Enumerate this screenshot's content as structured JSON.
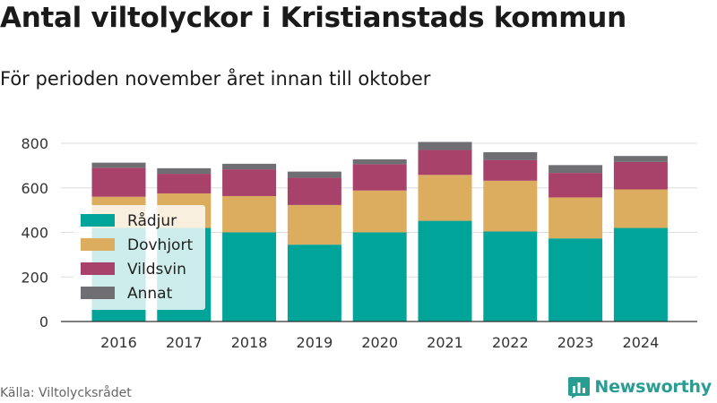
{
  "header": {
    "title": "Antal viltolyckor i Kristianstads kommun",
    "subtitle": "För perioden november året innan till oktober"
  },
  "footer": {
    "source": "Källa: Viltolycksrådet",
    "brand": "Newsworthy",
    "brand_icon": "bar-chart-logo-icon"
  },
  "chart_data": {
    "type": "bar",
    "stacked": true,
    "categories": [
      "2016",
      "2017",
      "2018",
      "2019",
      "2020",
      "2021",
      "2022",
      "2023",
      "2024"
    ],
    "series": [
      {
        "name": "Rådjur",
        "color": "#00a499",
        "values": [
          420,
          420,
          400,
          345,
          400,
          452,
          404,
          373,
          420
        ]
      },
      {
        "name": "Dovhjort",
        "color": "#dcad5e",
        "values": [
          140,
          155,
          163,
          178,
          188,
          206,
          228,
          184,
          173
        ]
      },
      {
        "name": "Vildsvin",
        "color": "#a8426a",
        "values": [
          130,
          88,
          120,
          122,
          118,
          112,
          93,
          110,
          123
        ]
      },
      {
        "name": "Annat",
        "color": "#6e6e73",
        "values": [
          23,
          25,
          25,
          28,
          22,
          36,
          35,
          35,
          27
        ]
      }
    ],
    "y_ticks": [
      0,
      200,
      400,
      600,
      800
    ],
    "ylim": [
      0,
      800
    ],
    "grid": true,
    "legend": {
      "position": "left-overlay",
      "background": "#ffffff"
    }
  }
}
